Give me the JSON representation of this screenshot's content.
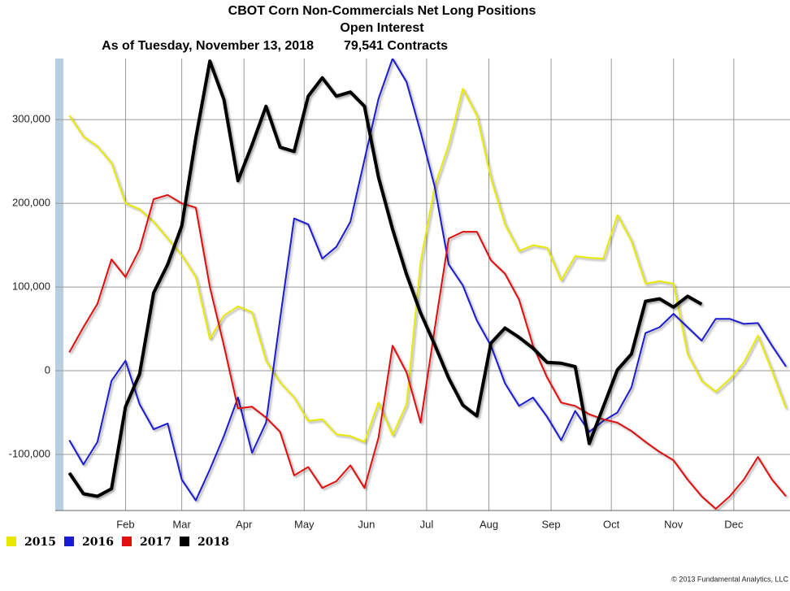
{
  "chart_data": {
    "type": "line",
    "title": "CBOT Corn Non-Commercials Net Long Positions",
    "subtitle": "Open Interest",
    "date_line": "As of Tuesday, November 13, 2018",
    "total_line": "79,541 Contracts",
    "footer": "© 2013 Fundamental Analytics, LLC",
    "x": [
      3,
      10,
      17,
      24,
      31,
      38,
      45,
      52,
      59,
      66,
      73,
      80,
      87,
      94,
      101,
      108,
      115,
      122,
      129,
      136,
      143,
      150,
      157,
      164,
      171,
      178,
      185,
      192,
      199,
      206,
      213,
      220,
      227,
      234,
      241,
      248,
      255,
      262,
      269,
      276,
      283,
      290,
      297,
      304,
      311,
      318,
      325,
      332,
      339,
      346,
      353,
      360
    ],
    "xlim": [
      -4,
      362
    ],
    "xticks": [
      {
        "value": 31,
        "label": "Feb"
      },
      {
        "value": 59,
        "label": "Mar"
      },
      {
        "value": 90,
        "label": "Apr"
      },
      {
        "value": 120,
        "label": "May"
      },
      {
        "value": 151,
        "label": "Jun"
      },
      {
        "value": 181,
        "label": "Jul"
      },
      {
        "value": 212,
        "label": "Aug"
      },
      {
        "value": 243,
        "label": "Sep"
      },
      {
        "value": 273,
        "label": "Oct"
      },
      {
        "value": 304,
        "label": "Nov"
      },
      {
        "value": 334,
        "label": "Dec"
      }
    ],
    "ylim": [
      -167000,
      373000
    ],
    "yticks": [
      {
        "value": -100000,
        "label": "-100,000"
      },
      0,
      {
        "value": 100000,
        "label": "100,000"
      },
      {
        "value": 200000,
        "label": "200,000"
      },
      {
        "value": 300000,
        "label": "300,000"
      }
    ],
    "grid": true,
    "legend": "bottom-left",
    "series": [
      {
        "name": "2015",
        "color": "#e8e800",
        "width": 2,
        "values": [
          305000,
          280000,
          268000,
          248000,
          200000,
          193000,
          178000,
          158000,
          138000,
          112000,
          38000,
          66000,
          77000,
          70000,
          12000,
          -14000,
          -32000,
          -60000,
          -58000,
          -76000,
          -78000,
          -85000,
          -38000,
          -77000,
          -40000,
          130000,
          220000,
          270000,
          337000,
          305000,
          230000,
          175000,
          143000,
          150000,
          147000,
          108000,
          137000,
          135000,
          134000,
          186000,
          155000,
          104000,
          107000,
          104000,
          20000,
          -12000,
          -25000,
          -10000,
          10000,
          42000,
          0,
          -45000
        ]
      },
      {
        "name": "2016",
        "color": "#1a1ad0",
        "width": 2,
        "values": [
          -83000,
          -112000,
          -85000,
          -12000,
          12000,
          -40000,
          -70000,
          -63000,
          -130000,
          -155000,
          -118000,
          -78000,
          -32000,
          -98000,
          -62000,
          62000,
          182000,
          175000,
          134000,
          148000,
          178000,
          252000,
          325000,
          373000,
          345000,
          285000,
          220000,
          127000,
          102000,
          60000,
          30000,
          -15000,
          -42000,
          -32000,
          -55000,
          -83000,
          -48000,
          -73000,
          -60000,
          -50000,
          -20000,
          45000,
          52000,
          68000,
          52000,
          36000,
          62000,
          62000,
          56000,
          57000,
          30000,
          5000
        ]
      },
      {
        "name": "2017",
        "color": "#e01010",
        "width": 2,
        "values": [
          22000,
          52000,
          80000,
          133000,
          112000,
          145000,
          205000,
          210000,
          200000,
          195000,
          100000,
          30000,
          -45000,
          -43000,
          -56000,
          -73000,
          -125000,
          -115000,
          -140000,
          -132000,
          -113000,
          -140000,
          -80000,
          30000,
          -2000,
          -62000,
          50000,
          158000,
          166000,
          166000,
          132000,
          116000,
          85000,
          30000,
          -8000,
          -38000,
          -42000,
          -52000,
          -58000,
          -62000,
          -72000,
          -85000,
          -97000,
          -107000,
          -130000,
          -150000,
          -165000,
          -150000,
          -130000,
          -103000,
          -130000,
          -150000
        ]
      },
      {
        "name": "2018",
        "color": "#000000",
        "width": 4,
        "values": [
          -122000,
          -147000,
          -150000,
          -141000,
          -43000,
          -4000,
          93000,
          127000,
          173000,
          278000,
          370000,
          324000,
          227000,
          270000,
          316000,
          267000,
          262000,
          328000,
          350000,
          328000,
          333000,
          316000,
          231000,
          169000,
          115000,
          69000,
          31000,
          -9000,
          -41000,
          -54000,
          33000,
          51000,
          40000,
          27000,
          10000,
          9000,
          5000,
          -87000,
          -43000,
          1000,
          20000,
          83000,
          86000,
          76000,
          89000,
          79541,
          null,
          null,
          null,
          null,
          null,
          null
        ]
      }
    ]
  }
}
